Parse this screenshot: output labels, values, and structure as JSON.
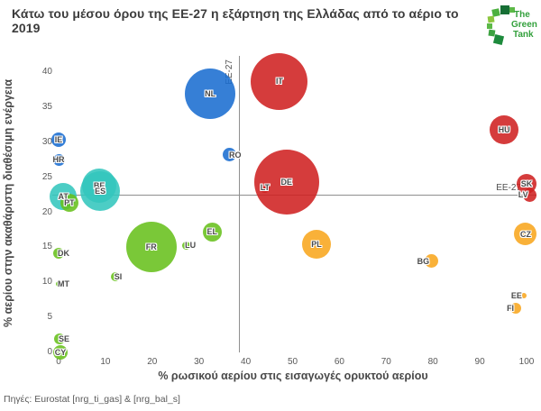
{
  "title": "Κάτω του μέσου όρου της ΕΕ-27 η εξάρτηση της Ελλάδας από το αέριο το 2019",
  "logo": {
    "lines": [
      "The",
      "Green",
      "Tank"
    ]
  },
  "source": "Πηγές: Eurostat [nrg_ti_gas] & [nrg_bal_s]",
  "palette": {
    "blue": "#1a6dd0",
    "red": "#cf2121",
    "teal": "#33c6bd",
    "green": "#68c01c",
    "orange": "#f8a61e"
  },
  "chart_data": {
    "type": "scatter",
    "title": "Κάτω του μέσου όρου της ΕΕ-27 η εξάρτηση της Ελλάδας από το αέριο το 2019",
    "xlabel": "% ρωσικού αερίου στις εισαγωγές ορυκτού αερίου",
    "ylabel": "% αερίου στην ακαθάριστη διαθέσιμη ενέργεια",
    "xlim": [
      0,
      100
    ],
    "ylim": [
      0,
      40
    ],
    "xticks": [
      0,
      10,
      20,
      30,
      40,
      50,
      60,
      70,
      80,
      90,
      100
    ],
    "yticks": [
      0,
      5,
      10,
      15,
      20,
      25,
      30,
      35,
      40
    ],
    "grid": false,
    "legend": "none",
    "reference_lines": {
      "vertical": {
        "label": "EE-27",
        "x": 38.5
      },
      "horizontal": {
        "label": "EE-27",
        "y": 22.5
      }
    },
    "points": [
      {
        "code": "NL",
        "x": 32.4,
        "y": 36.9,
        "r": 28,
        "color": "blue",
        "label_pos": "center"
      },
      {
        "code": "IE",
        "x": 0,
        "y": 30.4,
        "r": 8,
        "color": "blue",
        "label_pos": "center"
      },
      {
        "code": "HR",
        "x": 0,
        "y": 27.5,
        "r": 6.5,
        "color": "blue",
        "label_pos": "center"
      },
      {
        "code": "RO",
        "x": 36.6,
        "y": 28.2,
        "r": 7.5,
        "color": "blue",
        "label_pos": "right"
      },
      {
        "code": "IT",
        "x": 47.2,
        "y": 38.7,
        "r": 31.5,
        "color": "red",
        "label_pos": "center"
      },
      {
        "code": "DE",
        "x": 48.7,
        "y": 24.3,
        "r": 36,
        "color": "red",
        "label_pos": "center"
      },
      {
        "code": "LT",
        "x": 44.1,
        "y": 23.5,
        "r": 5.5,
        "color": "red",
        "label_pos": "center"
      },
      {
        "code": "HU",
        "x": 95.2,
        "y": 31.8,
        "r": 16,
        "color": "red",
        "label_pos": "center"
      },
      {
        "code": "SK",
        "x": 100,
        "y": 24.0,
        "r": 11,
        "color": "red",
        "label_pos": "center"
      },
      {
        "code": "LV",
        "x": 100.7,
        "y": 22.5,
        "r": 7.5,
        "color": "red",
        "label_pos": "left"
      },
      {
        "code": "BE",
        "x": 8.7,
        "y": 23.8,
        "r": 19,
        "color": "teal",
        "label_pos": "center"
      },
      {
        "code": "ES",
        "x": 8.9,
        "y": 23.0,
        "r": 22,
        "color": "teal",
        "label_pos": "center"
      },
      {
        "code": "AT",
        "x": 1.0,
        "y": 22.3,
        "r": 15,
        "color": "teal",
        "label_pos": "center"
      },
      {
        "code": "PT",
        "x": 2.3,
        "y": 21.4,
        "r": 10,
        "color": "green",
        "label_pos": "center"
      },
      {
        "code": "FR",
        "x": 19.8,
        "y": 15.0,
        "r": 28,
        "color": "green",
        "label_pos": "center"
      },
      {
        "code": "LU",
        "x": 27.2,
        "y": 15.3,
        "r": 4.5,
        "color": "green",
        "label_pos": "right"
      },
      {
        "code": "EL",
        "x": 32.8,
        "y": 17.2,
        "r": 10.5,
        "color": "green",
        "label_pos": "center"
      },
      {
        "code": "SI",
        "x": 12.1,
        "y": 10.8,
        "r": 5,
        "color": "green",
        "label_pos": "right"
      },
      {
        "code": "DK",
        "x": 0,
        "y": 14.1,
        "r": 6,
        "color": "green",
        "label_pos": "right"
      },
      {
        "code": "MT",
        "x": 0,
        "y": 9.8,
        "r": 3,
        "color": "green",
        "label_pos": "right"
      },
      {
        "code": "SE",
        "x": 0.2,
        "y": 1.9,
        "r": 6,
        "color": "green",
        "label_pos": "right"
      },
      {
        "code": "CY",
        "x": 0.4,
        "y": 0,
        "r": 8,
        "color": "green",
        "label_pos": "center"
      },
      {
        "code": "PL",
        "x": 55.1,
        "y": 15.4,
        "r": 16,
        "color": "orange",
        "label_pos": "center"
      },
      {
        "code": "BG",
        "x": 79.6,
        "y": 13.0,
        "r": 7.5,
        "color": "orange",
        "label_pos": "left"
      },
      {
        "code": "CZ",
        "x": 99.8,
        "y": 16.9,
        "r": 12.5,
        "color": "orange",
        "label_pos": "center"
      },
      {
        "code": "EE",
        "x": 99.4,
        "y": 8.1,
        "r": 3,
        "color": "orange",
        "label_pos": "left"
      },
      {
        "code": "FI",
        "x": 97.7,
        "y": 6.3,
        "r": 6,
        "color": "orange",
        "label_pos": "left"
      }
    ]
  }
}
